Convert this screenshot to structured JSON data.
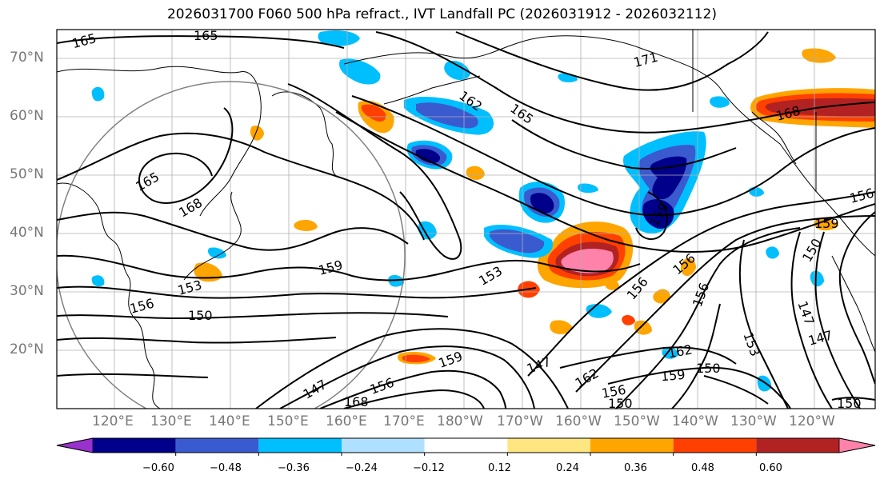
{
  "title": "2026031700 F060 500 hPa refract., IVT Landfall PC (2026031912 - 2026032112)",
  "lat_labels": [
    "70°N",
    "60°N",
    "50°N",
    "40°N",
    "30°N",
    "20°N"
  ],
  "lon_labels": [
    "120°E",
    "130°E",
    "140°E",
    "150°E",
    "160°E",
    "170°E",
    "180°W",
    "170°W",
    "160°W",
    "150°W",
    "140°W",
    "130°W",
    "120°W"
  ],
  "colorbar": {
    "colors": [
      "#9932cc",
      "#00008b",
      "#3a5ad0",
      "#00bfff",
      "#b0e0ff",
      "#ffffff",
      "#ffe680",
      "#ffa500",
      "#ff4000",
      "#b22222",
      "#ff82ab"
    ],
    "tick_labels": [
      "−0.60",
      "−0.48",
      "−0.36",
      "−0.24",
      "−0.12",
      "0.12",
      "0.24",
      "0.36",
      "0.48",
      "0.60"
    ]
  },
  "contour_labels": [
    "165",
    "165",
    "165",
    "168",
    "171",
    "162",
    "165",
    "168",
    "156",
    "159",
    "153",
    "156",
    "150",
    "159",
    "153",
    "159",
    "156",
    "150",
    "156",
    "156",
    "147",
    "147",
    "162",
    "159",
    "150",
    "147",
    "156",
    "159",
    "156",
    "153",
    "147",
    "162",
    "168",
    "150",
    "150"
  ]
}
